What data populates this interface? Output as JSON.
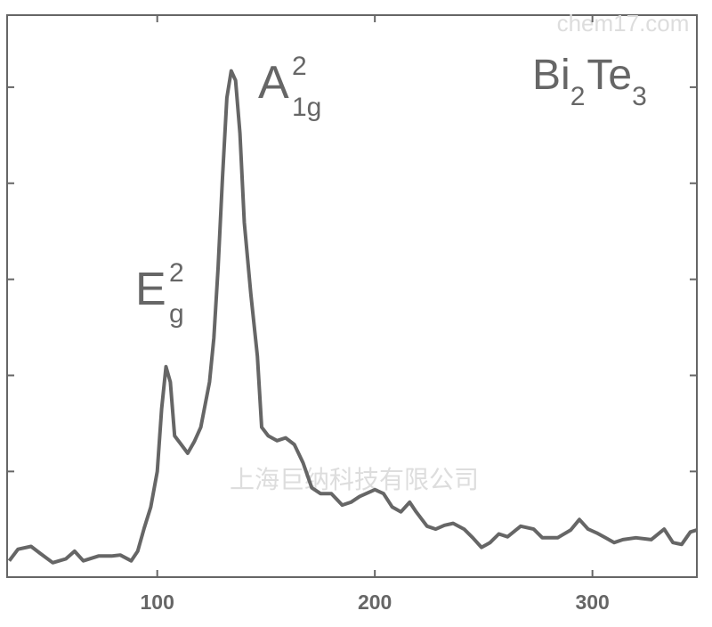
{
  "chart_data": {
    "type": "line",
    "sample_label": [
      {
        "text": "Bi",
        "sub": "2"
      },
      {
        "text": "Te",
        "sub": "3"
      }
    ],
    "annotations": [
      {
        "text": "E",
        "sup": "2",
        "sub": "g"
      },
      {
        "text": "A",
        "sup": "2",
        "sub": "1g"
      }
    ],
    "watermarks": [
      "上海巨纳科技有限公司",
      "chem17.com"
    ],
    "x": [
      32,
      36,
      42,
      46,
      52,
      58,
      62,
      66,
      73,
      79,
      83,
      88,
      91,
      94,
      97,
      100,
      102,
      104,
      106,
      108,
      111,
      114,
      117,
      120,
      124,
      126,
      128,
      130,
      132,
      134,
      136,
      138,
      140,
      143,
      146,
      148,
      151,
      155,
      159,
      163,
      167,
      171,
      175,
      180,
      185,
      189,
      193,
      200,
      204,
      208,
      212,
      216,
      219,
      224,
      228,
      232,
      236,
      241,
      245,
      249,
      253,
      257,
      261,
      267,
      273,
      277,
      284,
      290,
      294,
      298,
      302,
      306,
      310,
      314,
      320,
      327,
      333,
      337,
      341,
      345,
      348
    ],
    "series": [
      {
        "color": "#666666",
        "values": [
          0.07,
          0.19,
          0.22,
          0.15,
          0.05,
          0.09,
          0.17,
          0.07,
          0.12,
          0.12,
          0.13,
          0.07,
          0.17,
          0.41,
          0.63,
          1.0,
          1.65,
          2.09,
          1.93,
          1.37,
          1.28,
          1.19,
          1.31,
          1.46,
          1.93,
          2.39,
          3.13,
          4.06,
          4.89,
          5.17,
          5.07,
          4.52,
          3.59,
          2.85,
          2.2,
          1.46,
          1.37,
          1.32,
          1.35,
          1.28,
          1.09,
          0.83,
          0.77,
          0.77,
          0.65,
          0.68,
          0.74,
          0.81,
          0.77,
          0.63,
          0.58,
          0.68,
          0.58,
          0.43,
          0.4,
          0.44,
          0.46,
          0.4,
          0.31,
          0.21,
          0.26,
          0.35,
          0.32,
          0.43,
          0.4,
          0.31,
          0.31,
          0.39,
          0.5,
          0.4,
          0.36,
          0.31,
          0.26,
          0.29,
          0.31,
          0.29,
          0.4,
          0.26,
          0.24,
          0.37,
          0.39
        ]
      }
    ],
    "xlim": [
      31,
      348
    ],
    "xticks": [
      100,
      200,
      300
    ],
    "ylim": [
      -0.1,
      5.75
    ],
    "yticks": [
      1,
      2,
      3,
      4,
      5
    ]
  }
}
